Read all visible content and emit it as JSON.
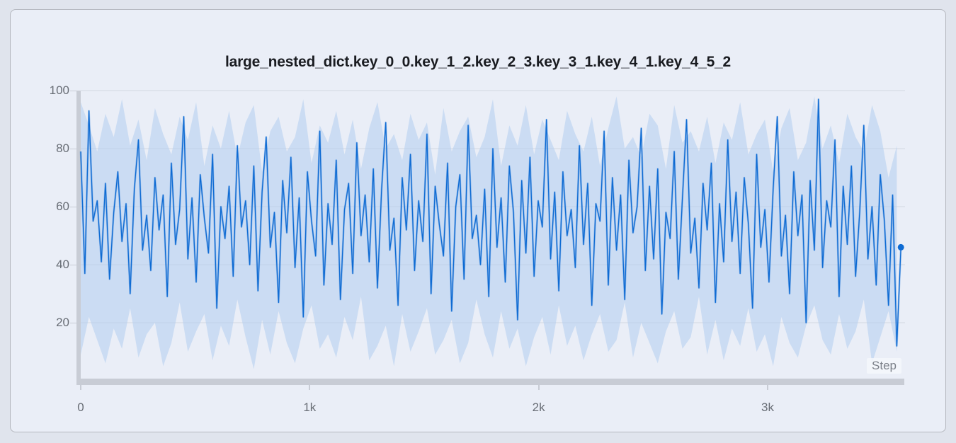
{
  "colors": {
    "page_bg": "#e0e4ed",
    "card_bg": "#eaeef7",
    "card_border": "#b4b7be",
    "line": "#0e6bd3",
    "envelope": "#b0cdf0",
    "grid": "#d3d8e1",
    "axis_band": "#c8ccd5",
    "tick_label": "#686d75",
    "title": "#1a1c21"
  },
  "chart_data": {
    "type": "line",
    "title": "large_nested_dict.key_0_0.key_1_2.key_2_3.key_3_1.key_4_1.key_4_5_2",
    "xlabel": "Step",
    "ylabel": "",
    "ylim": [
      0,
      100
    ],
    "xlim": [
      0,
      3600
    ],
    "grid": "horizontal-only",
    "legend": "none",
    "x_ticks": [
      {
        "value": 0,
        "label": "0"
      },
      {
        "value": 1000,
        "label": "1k"
      },
      {
        "value": 2000,
        "label": "2k"
      },
      {
        "value": 3000,
        "label": "3k"
      }
    ],
    "y_ticks": [
      20,
      40,
      60,
      80,
      100
    ],
    "x_start": 0,
    "x_step": 18,
    "series": [
      {
        "name": "key_4_5_2",
        "color": "#0e6bd3",
        "values": [
          79,
          37,
          93,
          55,
          62,
          41,
          68,
          35,
          58,
          72,
          48,
          61,
          30,
          66,
          83,
          45,
          57,
          38,
          70,
          52,
          64,
          29,
          75,
          47,
          59,
          91,
          42,
          63,
          34,
          71,
          56,
          44,
          78,
          25,
          60,
          49,
          67,
          36,
          81,
          53,
          62,
          40,
          74,
          31,
          65,
          84,
          46,
          58,
          27,
          69,
          51,
          77,
          39,
          63,
          22,
          72,
          55,
          43,
          86,
          33,
          61,
          47,
          76,
          28,
          59,
          68,
          37,
          82,
          50,
          64,
          41,
          73,
          32,
          66,
          89,
          45,
          56,
          26,
          70,
          52,
          78,
          38,
          62,
          48,
          85,
          30,
          67,
          54,
          43,
          75,
          24,
          60,
          71,
          35,
          88,
          49,
          57,
          40,
          66,
          29,
          80,
          46,
          63,
          34,
          74,
          58,
          21,
          69,
          44,
          77,
          36,
          62,
          53,
          90,
          42,
          65,
          31,
          72,
          50,
          59,
          39,
          81,
          47,
          68,
          26,
          61,
          55,
          86,
          33,
          70,
          45,
          64,
          28,
          76,
          51,
          60,
          87,
          38,
          67,
          42,
          73,
          23,
          58,
          49,
          79,
          35,
          63,
          90,
          44,
          56,
          32,
          68,
          52,
          75,
          27,
          61,
          41,
          83,
          48,
          65,
          37,
          70,
          54,
          25,
          78,
          46,
          59,
          34,
          66,
          91,
          43,
          57,
          30,
          72,
          50,
          64,
          20,
          69,
          45,
          97,
          39,
          62,
          53,
          83,
          29,
          67,
          47,
          74,
          36,
          58,
          88,
          42,
          60,
          33,
          71,
          55,
          26,
          64,
          12,
          46
        ]
      }
    ],
    "band": {
      "x_step": 36,
      "color": "#b0cdf0",
      "upper": [
        96,
        88,
        79,
        92,
        84,
        97,
        81,
        90,
        76,
        94,
        85,
        78,
        91,
        83,
        96,
        74,
        88,
        80,
        93,
        77,
        89,
        95,
        72,
        86,
        91,
        79,
        84,
        97,
        75,
        88,
        82,
        93,
        78,
        90,
        73,
        87,
        96,
        80,
        85,
        76,
        92,
        83,
        89,
        71,
        94,
        79,
        86,
        91,
        77,
        84,
        97,
        74,
        88,
        81,
        95,
        78,
        90,
        83,
        76,
        93,
        85,
        79,
        91,
        74,
        87,
        98,
        80,
        84,
        77,
        92,
        88,
        73,
        95,
        82,
        86,
        79,
        91,
        75,
        89,
        83,
        96,
        78,
        85,
        90,
        72,
        87,
        94,
        76,
        82,
        98,
        80,
        88,
        75,
        92,
        84,
        79,
        95,
        86,
        70,
        81
      ],
      "lower": [
        9,
        22,
        14,
        6,
        18,
        11,
        25,
        8,
        16,
        20,
        5,
        13,
        27,
        10,
        17,
        23,
        7,
        19,
        12,
        28,
        15,
        4,
        21,
        9,
        24,
        13,
        6,
        18,
        26,
        11,
        16,
        8,
        22,
        14,
        29,
        7,
        12,
        19,
        5,
        23,
        10,
        17,
        25,
        9,
        14,
        21,
        6,
        13,
        28,
        16,
        8,
        24,
        11,
        18,
        5,
        15,
        22,
        9,
        26,
        12,
        19,
        7,
        16,
        23,
        10,
        14,
        27,
        8,
        20,
        13,
        6,
        17,
        24,
        11,
        15,
        29,
        9,
        21,
        7,
        18,
        12,
        25,
        10,
        16,
        5,
        22,
        13,
        8,
        19,
        26,
        14,
        9,
        23,
        11,
        17,
        28,
        6,
        15,
        24,
        10
      ]
    },
    "end_marker": {
      "value": 46
    }
  }
}
